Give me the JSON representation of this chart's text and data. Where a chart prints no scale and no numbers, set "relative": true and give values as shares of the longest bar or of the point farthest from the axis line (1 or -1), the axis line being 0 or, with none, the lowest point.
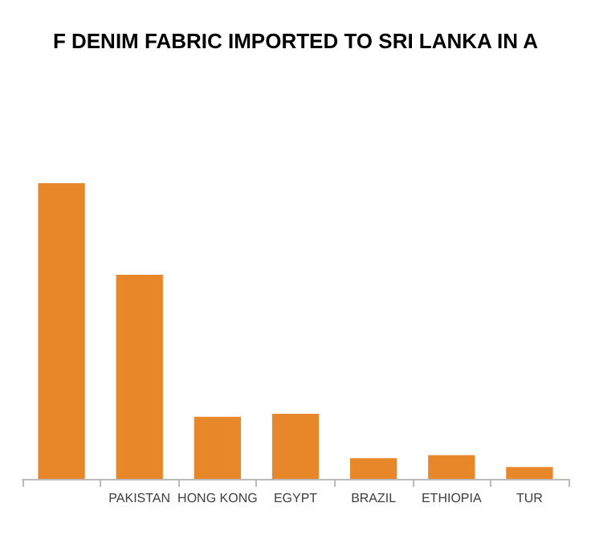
{
  "chart_data": {
    "type": "bar",
    "title": "F DENIM FABRIC IMPORTED TO SRI LANKA IN A",
    "categories": [
      null,
      "PAKISTAN",
      "HONG KONG",
      "EGYPT",
      "BRAZIL",
      "ETHIOPIA",
      "TUR"
    ],
    "values": [
      1,
      0.69,
      0.21,
      0.22,
      0.07,
      0.08,
      0.04
    ],
    "color": "#e8862a",
    "relative": true
  }
}
